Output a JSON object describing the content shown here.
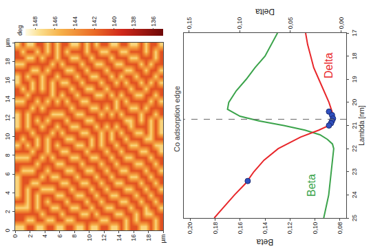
{
  "chart_data": [
    {
      "type": "heatmap",
      "x": [
        0.33,
        1,
        1.67,
        2.33,
        3,
        3.67,
        4.33,
        5,
        5.67,
        6.33,
        7,
        7.67,
        8.33,
        9,
        9.67,
        10.33,
        11,
        11.67,
        12.33,
        13,
        13.67,
        14.33,
        15,
        15.67,
        16.33,
        17,
        17.67,
        18.33,
        19,
        19.67
      ],
      "y": [
        0.33,
        1,
        1.67,
        2.33,
        3,
        3.67,
        4.33,
        5,
        5.67,
        6.33,
        7,
        7.67,
        8.33,
        9,
        9.67,
        10.33,
        11,
        11.67,
        12.33,
        13,
        13.67,
        14.33,
        15,
        15.67,
        16.33,
        17,
        17.67,
        18.33,
        19,
        19.67
      ],
      "z": [
        [
          147,
          141,
          141,
          147,
          141,
          147,
          147,
          147,
          147,
          141,
          141,
          147,
          141,
          147,
          141,
          141,
          147,
          147,
          147,
          141,
          147,
          141,
          141,
          147,
          147,
          141,
          147,
          141,
          141,
          147
        ],
        [
          147,
          141,
          141,
          147,
          141,
          141,
          141,
          141,
          141,
          147,
          141,
          147,
          141,
          141,
          147,
          141,
          141,
          141,
          141,
          141,
          147,
          141,
          147,
          141,
          141,
          141,
          147,
          141,
          147,
          141
        ],
        [
          141,
          147,
          141,
          147,
          147,
          147,
          147,
          141,
          141,
          147,
          141,
          147,
          141,
          147,
          141,
          141,
          147,
          147,
          147,
          141,
          141,
          147,
          141,
          141,
          147,
          141,
          141,
          147,
          141,
          147
        ],
        [
          141,
          147,
          141,
          141,
          141,
          141,
          141,
          147,
          141,
          147,
          141,
          141,
          147,
          141,
          141,
          147,
          141,
          141,
          141,
          147,
          141,
          141,
          147,
          147,
          141,
          147,
          141,
          147,
          141,
          147
        ],
        [
          147,
          141,
          141,
          147,
          147,
          147,
          141,
          147,
          141,
          141,
          147,
          141,
          141,
          147,
          147,
          141,
          141,
          147,
          141,
          141,
          147,
          141,
          141,
          141,
          141,
          147,
          141,
          141,
          147,
          141
        ],
        [
          147,
          141,
          147,
          141,
          141,
          141,
          147,
          141,
          147,
          141,
          141,
          147,
          141,
          141,
          141,
          141,
          147,
          141,
          141,
          147,
          141,
          141,
          147,
          147,
          147,
          141,
          141,
          147,
          141,
          141
        ],
        [
          141,
          147,
          141,
          141,
          147,
          141,
          147,
          141,
          141,
          147,
          141,
          141,
          147,
          147,
          147,
          141,
          141,
          147,
          141,
          141,
          147,
          141,
          141,
          141,
          141,
          147,
          141,
          141,
          147,
          147
        ],
        [
          141,
          147,
          141,
          147,
          141,
          141,
          147,
          141,
          147,
          141,
          141,
          147,
          141,
          141,
          141,
          147,
          141,
          141,
          147,
          141,
          141,
          147,
          147,
          147,
          141,
          141,
          147,
          141,
          141,
          141
        ],
        [
          147,
          141,
          141,
          147,
          141,
          147,
          141,
          141,
          147,
          141,
          147,
          141,
          141,
          147,
          141,
          141,
          147,
          141,
          147,
          141,
          147,
          141,
          141,
          141,
          147,
          141,
          141,
          147,
          147,
          147
        ],
        [
          147,
          141,
          147,
          141,
          141,
          147,
          141,
          147,
          141,
          141,
          147,
          141,
          147,
          141,
          141,
          147,
          141,
          141,
          147,
          141,
          141,
          147,
          141,
          147,
          141,
          141,
          147,
          141,
          141,
          141
        ],
        [
          141,
          147,
          141,
          141,
          147,
          141,
          141,
          147,
          141,
          147,
          141,
          141,
          147,
          141,
          147,
          141,
          141,
          147,
          141,
          141,
          147,
          141,
          141,
          147,
          141,
          147,
          141,
          141,
          147,
          141
        ],
        [
          141,
          147,
          141,
          147,
          141,
          141,
          147,
          141,
          141,
          147,
          141,
          147,
          141,
          141,
          147,
          141,
          147,
          141,
          141,
          147,
          141,
          141,
          147,
          141,
          141,
          147,
          141,
          147,
          141,
          147
        ],
        [
          147,
          141,
          141,
          147,
          141,
          147,
          141,
          141,
          147,
          141,
          141,
          147,
          141,
          147,
          141,
          141,
          147,
          141,
          147,
          141,
          141,
          147,
          141,
          141,
          147,
          141,
          141,
          147,
          141,
          147
        ],
        [
          147,
          141,
          147,
          141,
          141,
          147,
          141,
          147,
          141,
          141,
          147,
          141,
          141,
          147,
          141,
          147,
          141,
          141,
          147,
          141,
          147,
          141,
          141,
          147,
          141,
          141,
          147,
          141,
          141,
          141
        ],
        [
          141,
          141,
          147,
          141,
          147,
          141,
          141,
          147,
          141,
          147,
          141,
          141,
          147,
          141,
          141,
          147,
          141,
          147,
          141,
          141,
          147,
          141,
          147,
          141,
          141,
          147,
          141,
          141,
          147,
          147
        ],
        [
          147,
          141,
          141,
          147,
          141,
          141,
          147,
          141,
          141,
          147,
          141,
          147,
          141,
          147,
          147,
          141,
          141,
          147,
          141,
          147,
          141,
          141,
          147,
          141,
          147,
          141,
          141,
          147,
          141,
          141
        ],
        [
          147,
          141,
          147,
          141,
          141,
          147,
          141,
          141,
          147,
          141,
          141,
          147,
          141,
          141,
          141,
          141,
          147,
          141,
          141,
          147,
          141,
          147,
          141,
          141,
          147,
          141,
          147,
          141,
          141,
          147
        ],
        [
          141,
          147,
          141,
          141,
          147,
          141,
          141,
          147,
          141,
          141,
          147,
          141,
          141,
          147,
          147,
          147,
          141,
          141,
          147,
          141,
          141,
          147,
          141,
          147,
          141,
          141,
          147,
          141,
          147,
          141
        ],
        [
          141,
          147,
          141,
          147,
          141,
          141,
          147,
          141,
          141,
          147,
          141,
          141,
          147,
          141,
          141,
          141,
          147,
          141,
          141,
          147,
          141,
          141,
          147,
          141,
          141,
          147,
          141,
          141,
          147,
          141
        ],
        [
          147,
          141,
          141,
          147,
          141,
          147,
          141,
          141,
          147,
          141,
          141,
          147,
          141,
          141,
          147,
          147,
          141,
          141,
          147,
          141,
          141,
          147,
          141,
          141,
          147,
          141,
          141,
          147,
          141,
          147
        ],
        [
          147,
          141,
          147,
          141,
          141,
          147,
          141,
          147,
          141,
          141,
          147,
          141,
          141,
          147,
          141,
          141,
          147,
          141,
          141,
          147,
          147,
          141,
          141,
          147,
          141,
          141,
          147,
          141,
          141,
          147
        ],
        [
          141,
          141,
          147,
          141,
          147,
          141,
          141,
          147,
          141,
          147,
          141,
          141,
          147,
          141,
          141,
          147,
          141,
          141,
          147,
          141,
          141,
          147,
          141,
          141,
          147,
          141,
          147,
          141,
          147,
          141
        ],
        [
          147,
          147,
          141,
          141,
          147,
          141,
          147,
          141,
          141,
          147,
          141,
          147,
          141,
          141,
          147,
          141,
          141,
          147,
          141,
          141,
          147,
          141,
          141,
          147,
          141,
          147,
          141,
          141,
          147,
          141
        ],
        [
          141,
          141,
          141,
          147,
          141,
          141,
          147,
          141,
          147,
          141,
          141,
          147,
          141,
          147,
          141,
          141,
          147,
          147,
          141,
          147,
          141,
          141,
          147,
          141,
          141,
          147,
          141,
          147,
          141,
          147
        ],
        [
          141,
          147,
          147,
          141,
          141,
          147,
          141,
          141,
          147,
          141,
          147,
          141,
          141,
          147,
          141,
          147,
          141,
          141,
          141,
          147,
          141,
          147,
          141,
          141,
          147,
          141,
          141,
          147,
          141,
          147
        ],
        [
          147,
          141,
          141,
          141,
          147,
          141,
          141,
          147,
          141,
          141,
          147,
          141,
          147,
          141,
          141,
          147,
          141,
          147,
          147,
          141,
          141,
          147,
          141,
          147,
          141,
          141,
          147,
          141,
          141,
          141
        ],
        [
          147,
          141,
          147,
          147,
          141,
          141,
          147,
          141,
          141,
          147,
          141,
          141,
          147,
          141,
          147,
          141,
          141,
          141,
          141,
          147,
          141,
          141,
          147,
          141,
          141,
          147,
          141,
          141,
          147,
          147
        ],
        [
          141,
          141,
          147,
          141,
          141,
          147,
          141,
          141,
          147,
          141,
          141,
          147,
          141,
          141,
          147,
          147,
          147,
          147,
          141,
          141,
          147,
          141,
          141,
          147,
          141,
          141,
          147,
          141,
          141,
          141
        ],
        [
          147,
          147,
          141,
          141,
          147,
          141,
          141,
          147,
          141,
          141,
          147,
          141,
          141,
          147,
          141,
          141,
          141,
          141,
          147,
          141,
          141,
          147,
          141,
          141,
          147,
          141,
          141,
          147,
          147,
          141
        ],
        [
          141,
          141,
          141,
          147,
          141,
          141,
          147,
          141,
          141,
          147,
          141,
          141,
          147,
          147,
          141,
          147,
          147,
          147,
          141,
          141,
          147,
          141,
          141,
          147,
          141,
          147,
          141,
          141,
          141,
          147
        ]
      ],
      "xlim": [
        0,
        20
      ],
      "ylim": [
        20,
        0
      ],
      "xticks": [
        0,
        2,
        4,
        6,
        8,
        10,
        12,
        14,
        16,
        18,
        {
          "value": 20,
          "label": "µm"
        }
      ],
      "yticks": [
        0,
        2,
        4,
        6,
        8,
        10,
        12,
        14,
        16,
        18,
        {
          "value": 20,
          "label": "µm"
        }
      ],
      "zlim": [
        135,
        149
      ],
      "zticks": [
        136,
        138,
        140,
        142,
        144,
        146,
        148
      ],
      "colorbar_title": "deg",
      "grid": false
    },
    {
      "type": "line",
      "xlabel": "Lambda [nm]",
      "ylabel": "Beta",
      "y2label": "Delta",
      "xlim": [
        25,
        17
      ],
      "xticks": [
        17,
        18,
        19,
        20,
        21,
        22,
        23,
        24,
        25
      ],
      "ylim": [
        0.075,
        0.205
      ],
      "yticks": [
        {
          "value": 0.08,
          "label": "0,08"
        },
        {
          "value": 0.1,
          "label": "0,10"
        },
        {
          "value": 0.12,
          "label": "0,12"
        },
        {
          "value": 0.14,
          "label": "0,14"
        },
        {
          "value": 0.16,
          "label": "0,16"
        },
        {
          "value": 0.18,
          "label": "0,18"
        },
        {
          "value": 0.2,
          "label": "0,20"
        }
      ],
      "y2lim": [
        -0.005,
        0.155
      ],
      "y2ticks": [
        {
          "value": 0,
          "label": "0,00"
        },
        {
          "value": 0.05,
          "label": "0,05"
        },
        {
          "value": 0.1,
          "label": "0,10"
        },
        {
          "value": 0.15,
          "label": "0,15"
        }
      ],
      "grid": false,
      "series": [
        {
          "type": "line",
          "color": "#3aa34a",
          "axis": "y",
          "x": [
            17,
            17.5,
            18,
            18.5,
            19,
            19.5,
            20,
            20.3,
            20.6,
            20.8,
            21,
            21.2,
            21.4,
            21.6,
            21.8,
            22,
            22.5,
            23,
            23.5,
            24,
            24.5,
            25
          ],
          "values": [
            0.13,
            0.135,
            0.14,
            0.148,
            0.155,
            0.163,
            0.169,
            0.17,
            0.16,
            0.145,
            0.125,
            0.108,
            0.096,
            0.09,
            0.086,
            0.085,
            0.086,
            0.087,
            0.088,
            0.089,
            0.091,
            0.093
          ]
        },
        {
          "type": "line",
          "color": "#e8262a",
          "axis": "y2",
          "x": [
            17,
            17.5,
            18,
            18.5,
            19,
            19.5,
            20,
            20.4,
            20.8,
            21,
            21.2,
            21.5,
            22,
            22.5,
            23,
            23.5,
            24,
            24.5,
            25
          ],
          "values": [
            0.035,
            0.033,
            0.03,
            0.027,
            0.022,
            0.017,
            0.012,
            0.009,
            0.008,
            0.012,
            0.022,
            0.04,
            0.062,
            0.076,
            0.086,
            0.094,
            0.105,
            0.115,
            0.125
          ]
        },
        {
          "type": "scatter",
          "marker": "circle",
          "color": "#3050c0",
          "axis": "y2",
          "x": [
            20.4,
            20.55,
            20.7,
            20.8,
            20.9,
            21.0,
            23.4
          ],
          "values": [
            0.012,
            0.009,
            0.008,
            0.009,
            0.01,
            0.012,
            0.092
          ]
        }
      ],
      "annotations": [
        {
          "text": "Delta",
          "x": 18.4,
          "y": 0.012,
          "axis": "y2",
          "color": "#e8262a"
        },
        {
          "text": "Beta",
          "x": 23.6,
          "y": 0.103,
          "axis": "y",
          "color": "#3aa34a"
        },
        {
          "text": "Co adsorption edge",
          "x": 20.73
        }
      ]
    }
  ]
}
